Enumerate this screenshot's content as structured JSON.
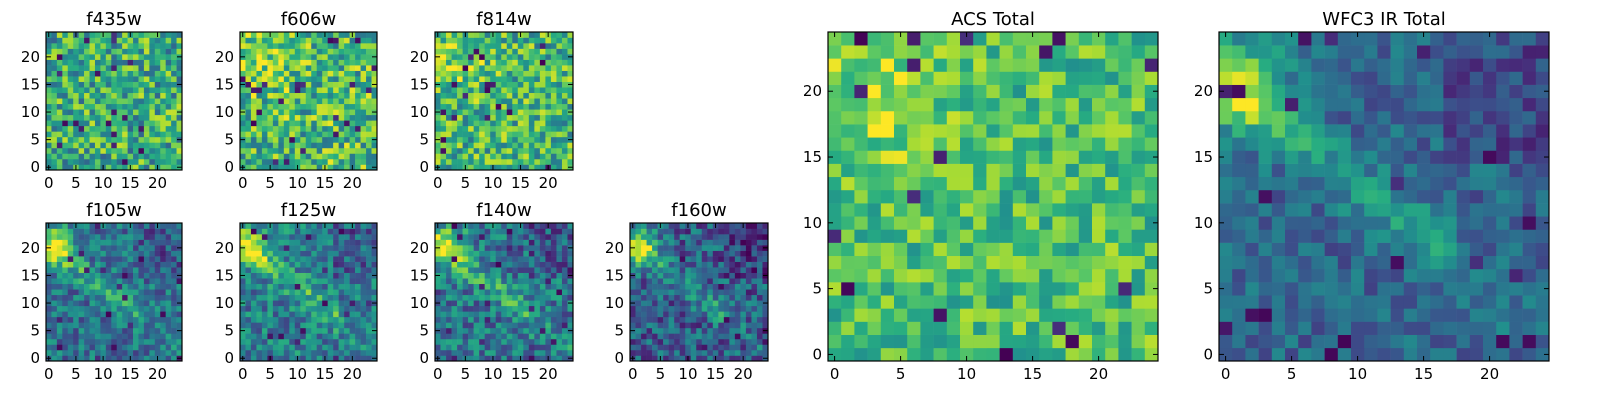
{
  "chart_data": [
    {
      "id": "f435w",
      "type": "heatmap",
      "title": "f435w",
      "grid_size": 25,
      "xlim": [
        0,
        24
      ],
      "ylim": [
        0,
        24
      ],
      "xticks": [
        0,
        5,
        10,
        15,
        20
      ],
      "yticks": [
        0,
        5,
        10,
        15,
        20
      ],
      "colormap": "viridis",
      "level": 0.62,
      "noise": 0.3,
      "pattern": "uniform",
      "seed": 11
    },
    {
      "id": "f606w",
      "type": "heatmap",
      "title": "f606w",
      "grid_size": 25,
      "xlim": [
        0,
        24
      ],
      "ylim": [
        0,
        24
      ],
      "xticks": [
        0,
        5,
        10,
        15,
        20
      ],
      "yticks": [
        0,
        5,
        10,
        15,
        20
      ],
      "colormap": "viridis",
      "level": 0.68,
      "noise": 0.3,
      "pattern": "uniform-bright-upper-left",
      "seed": 23
    },
    {
      "id": "f814w",
      "type": "heatmap",
      "title": "f814w",
      "grid_size": 25,
      "xlim": [
        0,
        24
      ],
      "ylim": [
        0,
        24
      ],
      "xticks": [
        0,
        5,
        10,
        15,
        20
      ],
      "yticks": [
        0,
        5,
        10,
        15,
        20
      ],
      "colormap": "viridis",
      "level": 0.66,
      "noise": 0.28,
      "pattern": "uniform-bright-upper-left",
      "seed": 37
    },
    {
      "id": "f105w",
      "type": "heatmap",
      "title": "f105w",
      "grid_size": 25,
      "xlim": [
        0,
        24
      ],
      "ylim": [
        0,
        24
      ],
      "xticks": [
        0,
        5,
        10,
        15,
        20
      ],
      "yticks": [
        0,
        5,
        10,
        15,
        20
      ],
      "colormap": "viridis",
      "level": 0.5,
      "noise": 0.2,
      "pattern": "diagonal-band",
      "seed": 41
    },
    {
      "id": "f125w",
      "type": "heatmap",
      "title": "f125w",
      "grid_size": 25,
      "xlim": [
        0,
        24
      ],
      "ylim": [
        0,
        24
      ],
      "xticks": [
        0,
        5,
        10,
        15,
        20
      ],
      "yticks": [
        0,
        5,
        10,
        15,
        20
      ],
      "colormap": "viridis",
      "level": 0.55,
      "noise": 0.22,
      "pattern": "diagonal-band",
      "seed": 53
    },
    {
      "id": "f140w",
      "type": "heatmap",
      "title": "f140w",
      "grid_size": 25,
      "xlim": [
        0,
        24
      ],
      "ylim": [
        0,
        24
      ],
      "xticks": [
        0,
        5,
        10,
        15,
        20
      ],
      "yticks": [
        0,
        5,
        10,
        15,
        20
      ],
      "colormap": "viridis",
      "level": 0.52,
      "noise": 0.22,
      "pattern": "diagonal-band",
      "seed": 67
    },
    {
      "id": "f160w",
      "type": "heatmap",
      "title": "f160w",
      "grid_size": 25,
      "xlim": [
        0,
        24
      ],
      "ylim": [
        0,
        24
      ],
      "xticks": [
        0,
        5,
        10,
        15,
        20
      ],
      "yticks": [
        0,
        5,
        10,
        15,
        20
      ],
      "colormap": "viridis",
      "level": 0.42,
      "noise": 0.22,
      "pattern": "diagonal-band",
      "seed": 79
    },
    {
      "id": "acs-total",
      "type": "heatmap",
      "title": "ACS Total",
      "grid_size": 25,
      "xlim": [
        0,
        24
      ],
      "ylim": [
        0,
        24
      ],
      "xticks": [
        0,
        5,
        10,
        15,
        20
      ],
      "yticks": [
        0,
        5,
        10,
        15,
        20
      ],
      "colormap": "viridis",
      "level": 0.7,
      "noise": 0.2,
      "pattern": "uniform-bright-upper-left",
      "seed": 97
    },
    {
      "id": "wfc3-ir-total",
      "type": "heatmap",
      "title": "WFC3 IR Total",
      "grid_size": 25,
      "xlim": [
        0,
        24
      ],
      "ylim": [
        0,
        24
      ],
      "xticks": [
        0,
        5,
        10,
        15,
        20
      ],
      "yticks": [
        0,
        5,
        10,
        15,
        20
      ],
      "colormap": "viridis",
      "level": 0.45,
      "noise": 0.14,
      "pattern": "diagonal-band",
      "seed": 113
    }
  ]
}
